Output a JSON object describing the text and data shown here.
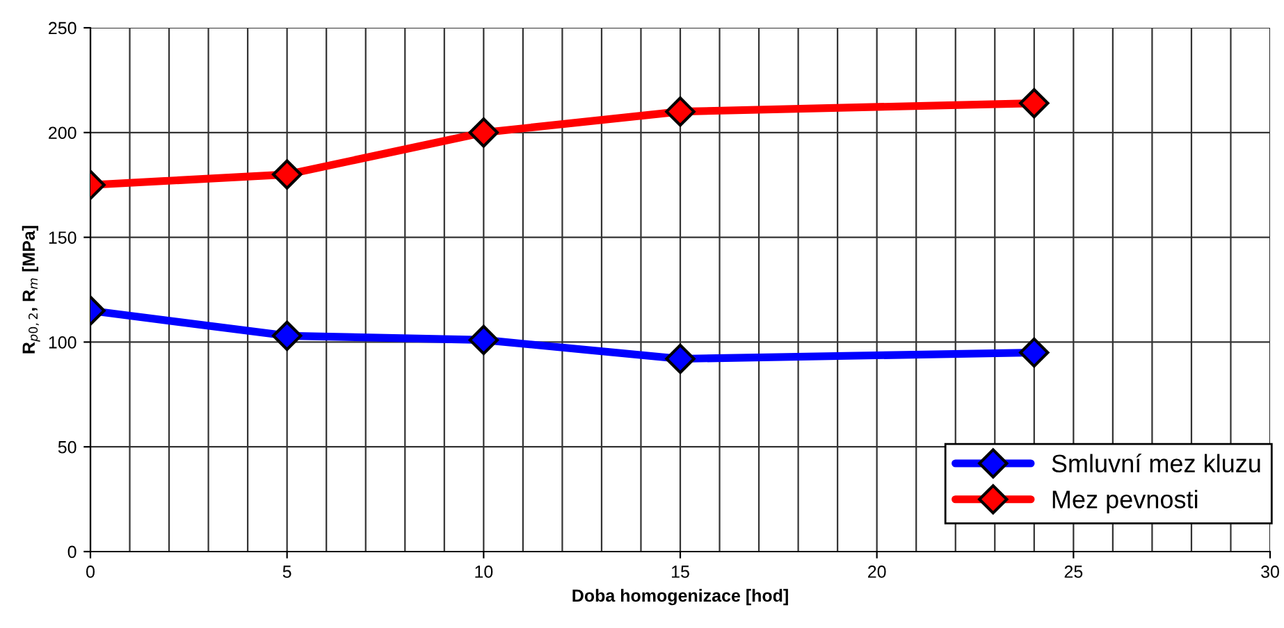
{
  "chart_data": {
    "type": "line",
    "xlabel": "Doba homogenizace [hod]",
    "ylabel": "R$_{p0,2}$, R$_{m}$ [MPa]",
    "x": [
      0,
      5,
      10,
      15,
      24
    ],
    "series": [
      {
        "name": "Smluvní mez kluzu",
        "color": "#0000ff",
        "values": [
          115,
          103,
          101,
          92,
          95
        ]
      },
      {
        "name": "Mez pevnosti",
        "color": "#ff0000",
        "values": [
          175,
          180,
          200,
          210,
          214
        ]
      }
    ],
    "xlim": [
      0,
      30
    ],
    "xticks": [
      0,
      5,
      10,
      15,
      20,
      25,
      30
    ],
    "ylim": [
      0,
      250
    ],
    "yticks": [
      0,
      50,
      100,
      150,
      200,
      250
    ],
    "grid": true,
    "legend": "bottom right",
    "marker": "diamond",
    "line_style": "solid"
  }
}
